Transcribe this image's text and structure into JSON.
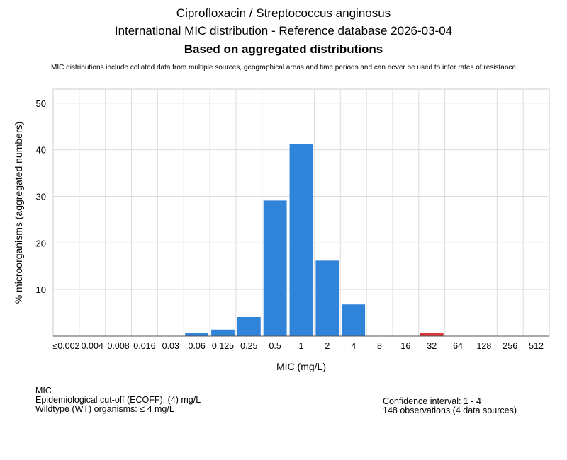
{
  "header": {
    "title_line1": "Ciprofloxacin / Streptococcus anginosus",
    "title_line2": "International MIC distribution - Reference database 2026-03-04",
    "title_line3": "Based on aggregated distributions",
    "subtitle": "MIC distributions include collated data from multiple sources, geographical areas and time periods and can never be used to infer rates of resistance"
  },
  "chart_data": {
    "type": "bar",
    "xlabel": "MIC (mg/L)",
    "ylabel": "% microorganisms (aggregated numbers)",
    "ylim": [
      0,
      53
    ],
    "yticks": [
      10,
      20,
      30,
      40,
      50
    ],
    "grid": true,
    "categories": [
      "≤0.002",
      "0.004",
      "0.008",
      "0.016",
      "0.03",
      "0.06",
      "0.125",
      "0.25",
      "0.5",
      "1",
      "2",
      "4",
      "8",
      "16",
      "32",
      "64",
      "128",
      "256",
      "512"
    ],
    "values": [
      0,
      0,
      0,
      0,
      0,
      0.7,
      1.4,
      4.1,
      29.1,
      41.2,
      16.2,
      6.8,
      0,
      0,
      0.7,
      0,
      0,
      0,
      0
    ],
    "colors": {
      "wildtype": "#2f84d9",
      "non_wildtype": "#d93636"
    },
    "non_wildtype_categories": [
      "32"
    ]
  },
  "footer": {
    "left_heading": "MIC",
    "left_line1": "Epidemiological cut-off (ECOFF): (4) mg/L",
    "left_line2": "Wildtype (WT) organisms: ≤ 4 mg/L",
    "right_line1": "Confidence interval: 1 - 4",
    "right_line2": "148 observations (4 data sources)"
  }
}
